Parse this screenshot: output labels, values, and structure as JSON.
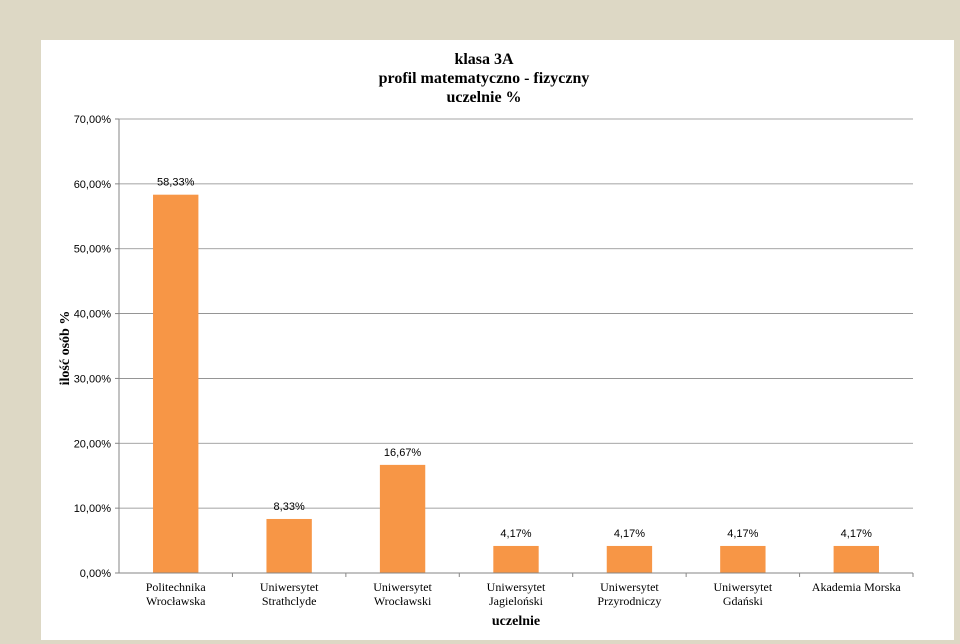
{
  "chart_data": {
    "type": "bar",
    "title": [
      "klasa 3A",
      "profil matematyczno - fizyczny",
      "uczelnie %"
    ],
    "xlabel": "uczelnie",
    "ylabel": "ilość osób %",
    "ylim": [
      0,
      70
    ],
    "yticks": [
      0,
      10,
      20,
      30,
      40,
      50,
      60,
      70
    ],
    "ytick_labels": [
      "0,00%",
      "10,00%",
      "20,00%",
      "30,00%",
      "40,00%",
      "50,00%",
      "60,00%",
      "70,00%"
    ],
    "grid": true,
    "legend": "none",
    "bar_color": "#f79646",
    "categories": [
      [
        "Politechnika",
        "Wrocławska"
      ],
      [
        "Uniwersytet",
        "Strathclyde"
      ],
      [
        "Uniwersytet",
        "Wrocławski"
      ],
      [
        "Uniwersytet",
        "Jagieloński"
      ],
      [
        "Uniwersytet",
        "Przyrodniczy"
      ],
      [
        "Uniwersytet",
        "Gdański"
      ],
      [
        "Akademia Morska"
      ]
    ],
    "values": [
      58.33,
      8.33,
      16.67,
      4.17,
      4.17,
      4.17,
      4.17
    ],
    "data_labels": [
      "58,33%",
      "8,33%",
      "16,67%",
      "4,17%",
      "4,17%",
      "4,17%",
      "4,17%"
    ]
  }
}
